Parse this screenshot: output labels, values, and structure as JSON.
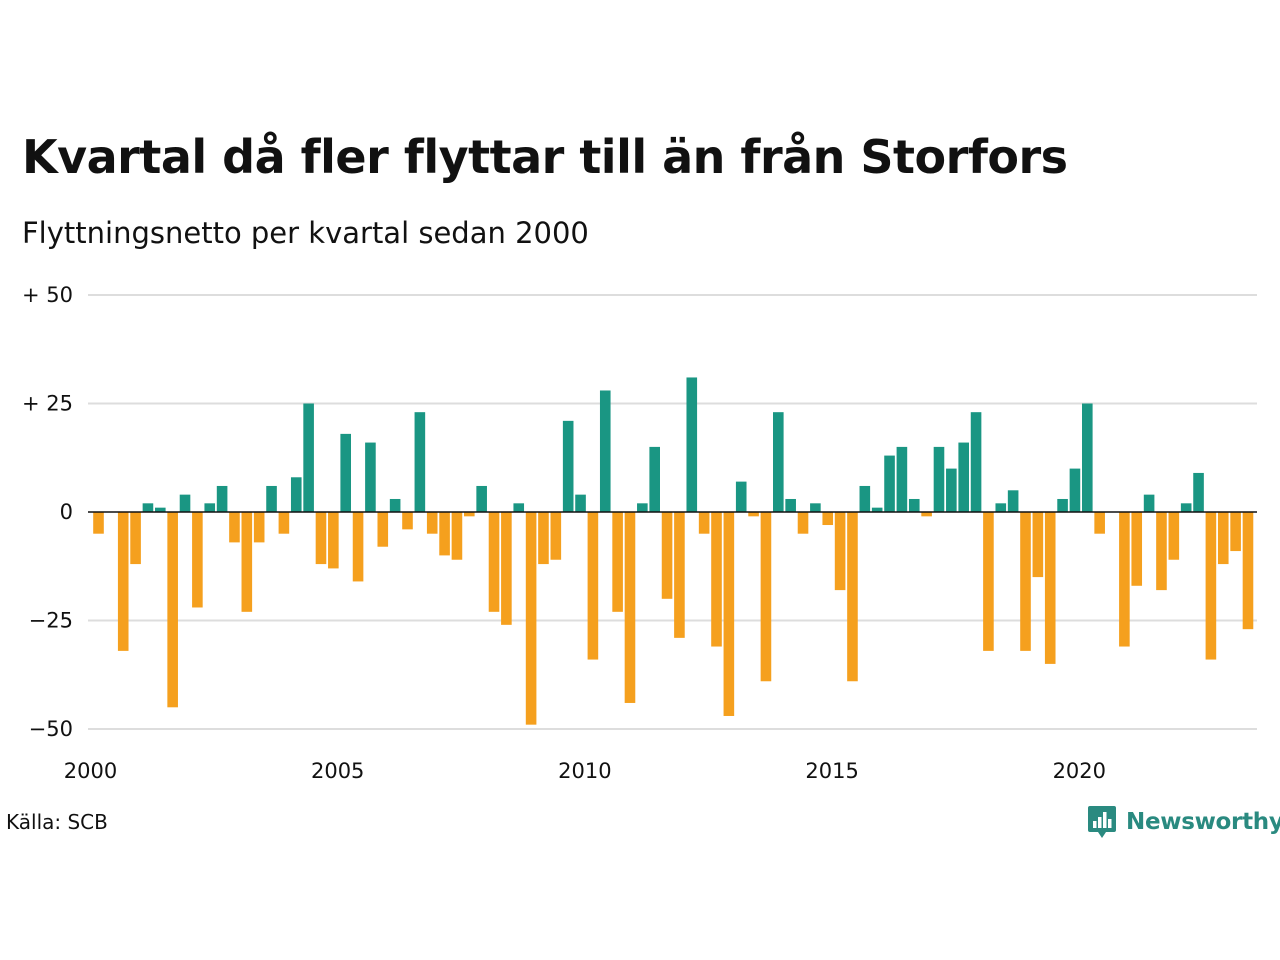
{
  "header": {
    "title": "Kvartal då fler flyttar till än från Storfors",
    "subtitle": "Flyttningsnetto per kvartal sedan 2000"
  },
  "footer": {
    "source": "Källa: SCB",
    "brand": "Newsworthy",
    "brand_icon": "newsworthy-logo-icon"
  },
  "colors": {
    "positive": "#1a9683",
    "negative": "#f5a01e",
    "grid": "#dddddd",
    "zero_line": "#111111",
    "brand": "#2a8a80"
  },
  "chart_data": {
    "type": "bar",
    "title": "Kvartal då fler flyttar till än från Storfors",
    "subtitle": "Flyttningsnetto per kvartal sedan 2000",
    "xlabel": "",
    "ylabel": "",
    "ylim": [
      -50,
      50
    ],
    "grid": true,
    "legend": "none",
    "y_ticks": [
      {
        "value": 50,
        "label": "+ 50"
      },
      {
        "value": 25,
        "label": "+ 25"
      },
      {
        "value": 0,
        "label": "0"
      },
      {
        "value": -25,
        "label": "−25"
      },
      {
        "value": -50,
        "label": "−50"
      }
    ],
    "x_ticks": [
      {
        "year": 2000,
        "label": "2000"
      },
      {
        "year": 2005,
        "label": "2005"
      },
      {
        "year": 2010,
        "label": "2010"
      },
      {
        "year": 2015,
        "label": "2015"
      },
      {
        "year": 2020,
        "label": "2020"
      }
    ],
    "start_year": 2000,
    "start_quarter": 1,
    "values": [
      -5,
      0,
      -32,
      -12,
      2,
      1,
      -45,
      4,
      -22,
      2,
      6,
      -7,
      -23,
      -7,
      6,
      -5,
      8,
      25,
      -12,
      -13,
      18,
      -16,
      16,
      -8,
      3,
      -4,
      23,
      -5,
      -10,
      -11,
      -1,
      6,
      -23,
      -26,
      2,
      -49,
      -12,
      -11,
      21,
      4,
      -34,
      28,
      -23,
      -44,
      2,
      15,
      -20,
      -29,
      31,
      -5,
      -31,
      -47,
      7,
      -1,
      -39,
      23,
      3,
      -5,
      2,
      -3,
      -18,
      -39,
      6,
      1,
      13,
      15,
      3,
      -1,
      15,
      10,
      16,
      23,
      -32,
      2,
      5,
      -32,
      -15,
      -35,
      3,
      10,
      25,
      -5,
      0,
      -31,
      -17,
      4,
      -18,
      -11,
      2,
      9,
      -34,
      -12,
      -9,
      -27
    ]
  }
}
